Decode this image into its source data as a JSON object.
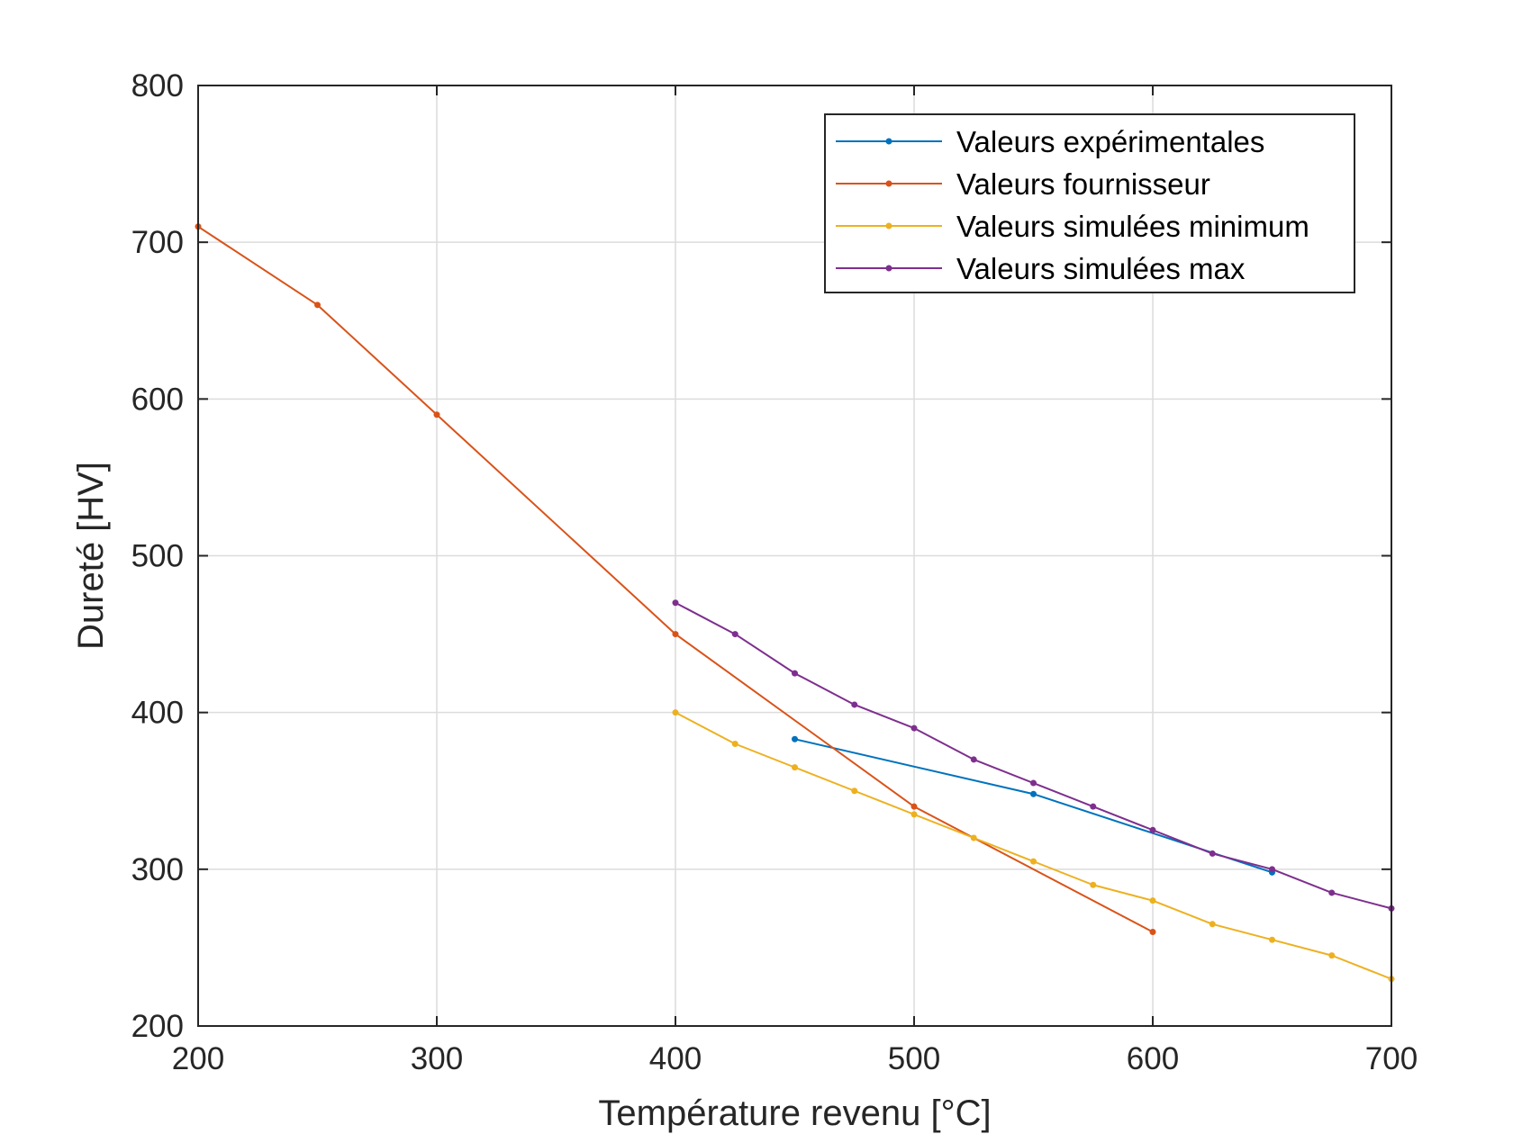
{
  "chart_data": {
    "type": "line",
    "xlabel": "Température revenu [°C]",
    "ylabel": "Dureté [HV]",
    "xlim": [
      200,
      700
    ],
    "ylim": [
      200,
      800
    ],
    "xticks": [
      200,
      300,
      400,
      500,
      600,
      700
    ],
    "yticks": [
      200,
      300,
      400,
      500,
      600,
      700,
      800
    ],
    "xtick_labels": [
      "200",
      "300",
      "400",
      "500",
      "600",
      "700"
    ],
    "ytick_labels": [
      "200",
      "300",
      "400",
      "500",
      "600",
      "700",
      "800"
    ],
    "grid": true,
    "legend_position": "top-right",
    "series": [
      {
        "name": "Valeurs expérimentales",
        "color": "#0072BD",
        "x": [
          450,
          550,
          650
        ],
        "y": [
          383,
          348,
          298
        ]
      },
      {
        "name": "Valeurs fournisseur",
        "color": "#D95319",
        "x": [
          200,
          250,
          300,
          400,
          500,
          600
        ],
        "y": [
          710,
          660,
          590,
          450,
          340,
          260
        ]
      },
      {
        "name": "Valeurs simulées minimum",
        "color": "#EDB120",
        "x": [
          400,
          425,
          450,
          475,
          500,
          525,
          550,
          575,
          600,
          625,
          650,
          675,
          700
        ],
        "y": [
          400,
          380,
          365,
          350,
          335,
          320,
          305,
          290,
          280,
          265,
          255,
          245,
          230
        ]
      },
      {
        "name": "Valeurs simulées max",
        "color": "#7E2F8E",
        "x": [
          400,
          425,
          450,
          475,
          500,
          525,
          550,
          575,
          600,
          625,
          650,
          675,
          700
        ],
        "y": [
          470,
          450,
          425,
          405,
          390,
          370,
          355,
          340,
          325,
          310,
          300,
          285,
          275
        ]
      }
    ]
  }
}
